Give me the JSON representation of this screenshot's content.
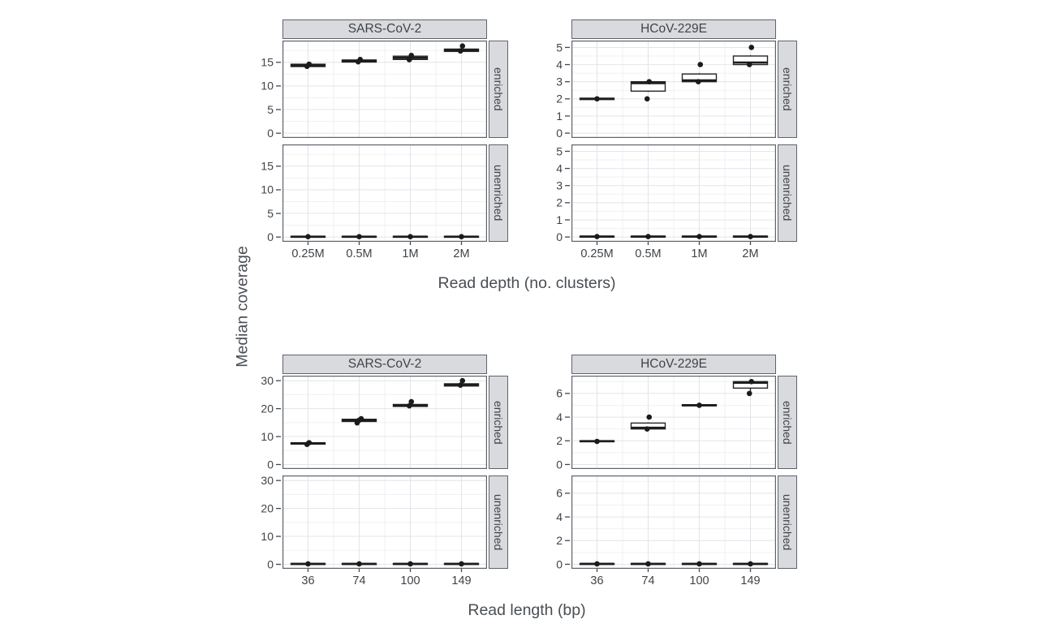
{
  "ylabel": "Median coverage",
  "style": {
    "colors": {
      "strip_bg": "#d9dade",
      "strip_border": "#5f646a",
      "panel_border": "#5f646a",
      "panel_bg": "#ffffff",
      "grid_major": "#e3e4e8",
      "grid_minor": "#f1f1f4",
      "text": "#3f4347",
      "tick": "#43474c",
      "box_stroke": "#262626",
      "box_fill": "#ffffff",
      "median": "#1c1c1c",
      "point": "#1b1b1b"
    }
  },
  "chart_data": [
    {
      "type": "boxplot",
      "xlabel": "Read depth (no. clusters)",
      "categories": [
        "0.25M",
        "0.5M",
        "1M",
        "2M"
      ],
      "facet_rows": [
        "enriched",
        "unenriched"
      ],
      "columns": [
        {
          "title": "SARS-CoV-2",
          "ylim": [
            -1.0,
            19.6
          ],
          "yticks": [
            0,
            5,
            10,
            15
          ],
          "rows": [
            {
              "label": "enriched",
              "boxes": [
                {
                  "lo": 13.8,
                  "q1": 14.1,
                  "med": 14.35,
                  "q3": 14.6,
                  "hi": 14.85,
                  "points": [
                    14.15,
                    14.6
                  ]
                },
                {
                  "lo": 14.85,
                  "q1": 15.05,
                  "med": 15.25,
                  "q3": 15.5,
                  "hi": 15.7,
                  "points": [
                    15.1,
                    15.6
                  ]
                },
                {
                  "lo": 15.35,
                  "q1": 15.6,
                  "med": 15.95,
                  "q3": 16.3,
                  "hi": 16.55,
                  "points": [
                    15.55,
                    16.45
                  ]
                },
                {
                  "lo": 17.1,
                  "q1": 17.3,
                  "med": 17.55,
                  "q3": 17.8,
                  "hi": 17.95,
                  "points": [
                    17.4,
                    18.45
                  ]
                }
              ]
            },
            {
              "label": "unenriched",
              "boxes": [
                {
                  "lo": 0,
                  "q1": 0,
                  "med": 0.08,
                  "q3": 0.16,
                  "hi": 0.16,
                  "points": [
                    0.08
                  ]
                },
                {
                  "lo": 0,
                  "q1": 0,
                  "med": 0.08,
                  "q3": 0.16,
                  "hi": 0.16,
                  "points": [
                    0.08
                  ]
                },
                {
                  "lo": 0,
                  "q1": 0,
                  "med": 0.08,
                  "q3": 0.16,
                  "hi": 0.16,
                  "points": [
                    0.08
                  ]
                },
                {
                  "lo": 0,
                  "q1": 0,
                  "med": 0.08,
                  "q3": 0.16,
                  "hi": 0.16,
                  "points": [
                    0.08
                  ]
                }
              ]
            }
          ]
        },
        {
          "title": "HCoV-229E",
          "ylim": [
            -0.28,
            5.4
          ],
          "yticks": [
            0,
            1,
            2,
            3,
            4,
            5
          ],
          "rows": [
            {
              "label": "enriched",
              "boxes": [
                {
                  "lo": 1.92,
                  "q1": 1.96,
                  "med": 2.0,
                  "q3": 2.04,
                  "hi": 2.08,
                  "points": [
                    2.0
                  ]
                },
                {
                  "lo": 2.4,
                  "q1": 2.45,
                  "med": 2.92,
                  "q3": 3.0,
                  "hi": 3.05,
                  "points": [
                    2.0,
                    3.0
                  ]
                },
                {
                  "lo": 2.95,
                  "q1": 3.0,
                  "med": 3.08,
                  "q3": 3.45,
                  "hi": 3.5,
                  "points": [
                    3.0,
                    4.0
                  ]
                },
                {
                  "lo": 3.95,
                  "q1": 4.0,
                  "med": 4.12,
                  "q3": 4.5,
                  "hi": 4.55,
                  "points": [
                    4.0,
                    5.0
                  ]
                }
              ]
            },
            {
              "label": "unenriched",
              "boxes": [
                {
                  "lo": 0,
                  "q1": 0,
                  "med": 0.025,
                  "q3": 0.05,
                  "hi": 0.05,
                  "points": [
                    0.025
                  ]
                },
                {
                  "lo": 0,
                  "q1": 0,
                  "med": 0.025,
                  "q3": 0.05,
                  "hi": 0.05,
                  "points": [
                    0.025
                  ]
                },
                {
                  "lo": 0,
                  "q1": 0,
                  "med": 0.025,
                  "q3": 0.05,
                  "hi": 0.05,
                  "points": [
                    0.025
                  ]
                },
                {
                  "lo": 0,
                  "q1": 0,
                  "med": 0.025,
                  "q3": 0.05,
                  "hi": 0.05,
                  "points": [
                    0.025
                  ]
                }
              ]
            }
          ]
        }
      ]
    },
    {
      "type": "boxplot",
      "xlabel": "Read length (bp)",
      "categories": [
        "36",
        "74",
        "100",
        "149"
      ],
      "facet_rows": [
        "enriched",
        "unenriched"
      ],
      "columns": [
        {
          "title": "SARS-CoV-2",
          "ylim": [
            -1.6,
            31.8
          ],
          "yticks": [
            0,
            10,
            20,
            30
          ],
          "rows": [
            {
              "label": "enriched",
              "boxes": [
                {
                  "lo": 6.9,
                  "q1": 7.3,
                  "med": 7.55,
                  "q3": 7.8,
                  "hi": 8.1,
                  "points": [
                    7.2,
                    7.8
                  ]
                },
                {
                  "lo": 14.8,
                  "q1": 15.4,
                  "med": 15.8,
                  "q3": 16.2,
                  "hi": 16.6,
                  "points": [
                    14.9,
                    15.9,
                    16.4
                  ]
                },
                {
                  "lo": 20.5,
                  "q1": 20.8,
                  "med": 21.1,
                  "q3": 21.5,
                  "hi": 21.8,
                  "points": [
                    21.0,
                    22.5
                  ]
                },
                {
                  "lo": 27.8,
                  "q1": 28.1,
                  "med": 28.5,
                  "q3": 28.9,
                  "hi": 29.2,
                  "points": [
                    28.4,
                    30.0
                  ]
                }
              ]
            },
            {
              "label": "unenriched",
              "boxes": [
                {
                  "lo": 0,
                  "q1": 0,
                  "med": 0.15,
                  "q3": 0.3,
                  "hi": 0.3,
                  "points": [
                    0.15
                  ]
                },
                {
                  "lo": 0,
                  "q1": 0,
                  "med": 0.15,
                  "q3": 0.3,
                  "hi": 0.3,
                  "points": [
                    0.15
                  ]
                },
                {
                  "lo": 0,
                  "q1": 0,
                  "med": 0.15,
                  "q3": 0.3,
                  "hi": 0.3,
                  "points": [
                    0.15
                  ]
                },
                {
                  "lo": 0,
                  "q1": 0,
                  "med": 0.15,
                  "q3": 0.3,
                  "hi": 0.3,
                  "points": [
                    0.15
                  ]
                }
              ]
            }
          ]
        },
        {
          "title": "HCoV-229E",
          "ylim": [
            -0.38,
            7.5
          ],
          "yticks": [
            0,
            2,
            4,
            6
          ],
          "rows": [
            {
              "label": "enriched",
              "boxes": [
                {
                  "lo": 1.9,
                  "q1": 1.93,
                  "med": 1.97,
                  "q3": 2.0,
                  "hi": 2.05,
                  "points": [
                    1.95
                  ]
                },
                {
                  "lo": 2.95,
                  "q1": 3.0,
                  "med": 3.1,
                  "q3": 3.5,
                  "hi": 3.55,
                  "points": [
                    3.0,
                    4.0
                  ]
                },
                {
                  "lo": 4.9,
                  "q1": 4.95,
                  "med": 5.0,
                  "q3": 5.05,
                  "hi": 5.1,
                  "points": [
                    5.0
                  ]
                },
                {
                  "lo": 6.0,
                  "q1": 6.45,
                  "med": 6.9,
                  "q3": 7.0,
                  "hi": 7.05,
                  "points": [
                    6.0,
                    7.0
                  ]
                }
              ]
            },
            {
              "label": "unenriched",
              "boxes": [
                {
                  "lo": 0,
                  "q1": 0,
                  "med": 0.035,
                  "q3": 0.07,
                  "hi": 0.07,
                  "points": [
                    0.035
                  ]
                },
                {
                  "lo": 0,
                  "q1": 0,
                  "med": 0.035,
                  "q3": 0.07,
                  "hi": 0.07,
                  "points": [
                    0.035
                  ]
                },
                {
                  "lo": 0,
                  "q1": 0,
                  "med": 0.035,
                  "q3": 0.07,
                  "hi": 0.07,
                  "points": [
                    0.035
                  ]
                },
                {
                  "lo": 0,
                  "q1": 0,
                  "med": 0.035,
                  "q3": 0.07,
                  "hi": 0.07,
                  "points": [
                    0.035
                  ]
                }
              ]
            }
          ]
        }
      ]
    }
  ]
}
